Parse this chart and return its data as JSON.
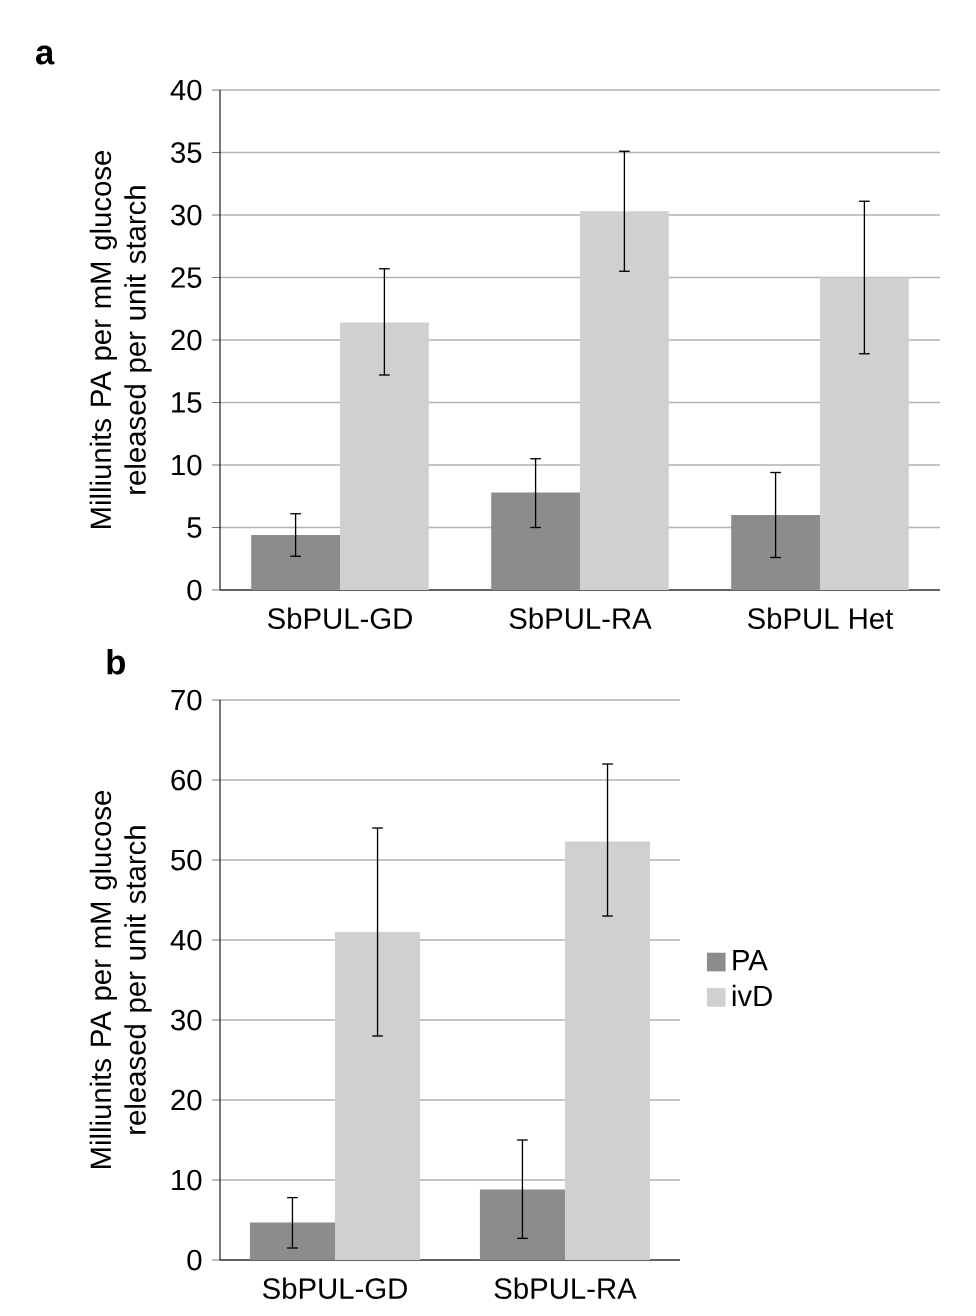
{
  "chart_data": [
    {
      "type": "bar",
      "title": "a",
      "ylabel": "Milliunits PA per mM glucose released per unit starch",
      "categories": [
        "SbPUL-GD",
        "SbPUL-RA",
        "SbPUL Het"
      ],
      "ylim": [
        0,
        40
      ],
      "yticks": [
        0,
        5,
        10,
        15,
        20,
        25,
        30,
        35,
        40
      ],
      "grid": "y",
      "series": [
        {
          "color": "#8c8c8c",
          "values": [
            4.4,
            7.8,
            6.0
          ],
          "errors": [
            [
              2.7,
              6.1
            ],
            [
              5.0,
              10.5
            ],
            [
              2.6,
              9.4
            ]
          ]
        },
        {
          "color": "#d0d0d0",
          "values": [
            21.4,
            30.3,
            25.0
          ],
          "errors": [
            [
              17.2,
              25.7
            ],
            [
              25.5,
              35.1
            ],
            [
              18.9,
              31.1
            ]
          ]
        }
      ]
    },
    {
      "type": "bar",
      "title": "b",
      "ylabel": "Milliunits PA per mM glucose released per unit starch",
      "categories": [
        "SbPUL-GD",
        "SbPUL-RA"
      ],
      "ylim": [
        0,
        70
      ],
      "yticks": [
        0,
        10,
        20,
        30,
        40,
        50,
        60,
        70
      ],
      "grid": "y",
      "legend": "right",
      "series": [
        {
          "name": "PA",
          "color": "#8c8c8c",
          "values": [
            4.7,
            8.8
          ],
          "errors": [
            [
              1.5,
              7.8
            ],
            [
              2.7,
              15.0
            ]
          ]
        },
        {
          "name": "ivD",
          "color": "#d0d0d0",
          "values": [
            41.0,
            52.3
          ],
          "errors": [
            [
              28.0,
              54.0
            ],
            [
              43.0,
              62.0
            ]
          ]
        }
      ]
    }
  ]
}
